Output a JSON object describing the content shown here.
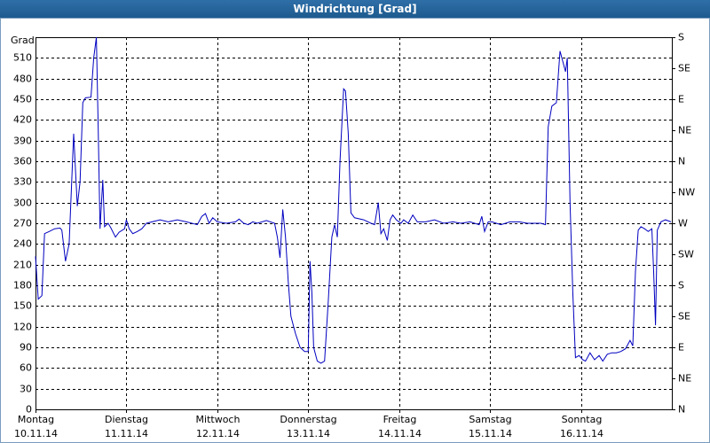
{
  "chart_data": {
    "type": "line",
    "title": "Windrichtung [Grad]",
    "y_label": "Grad",
    "x": [
      0,
      0.03,
      0.07,
      0.1,
      0.15,
      0.21,
      0.27,
      0.29,
      0.33,
      0.37,
      0.42,
      0.46,
      0.49,
      0.52,
      0.55,
      0.61,
      0.64,
      0.67,
      0.69,
      0.71,
      0.74,
      0.76,
      0.8,
      0.83,
      0.88,
      0.92,
      0.98,
      1.0,
      1.03,
      1.07,
      1.12,
      1.17,
      1.22,
      1.37,
      1.46,
      1.56,
      1.66,
      1.78,
      1.83,
      1.87,
      1.91,
      1.95,
      2.0,
      2.1,
      2.2,
      2.24,
      2.29,
      2.34,
      2.39,
      2.44,
      2.54,
      2.63,
      2.66,
      2.69,
      2.72,
      2.75,
      2.78,
      2.81,
      2.86,
      2.91,
      2.96,
      3.0,
      3.02,
      3.04,
      3.06,
      3.1,
      3.14,
      3.18,
      3.22,
      3.26,
      3.29,
      3.32,
      3.35,
      3.39,
      3.41,
      3.44,
      3.47,
      3.51,
      3.61,
      3.69,
      3.73,
      3.77,
      3.8,
      3.83,
      3.87,
      3.9,
      3.93,
      3.97,
      4.02,
      4.05,
      4.1,
      4.15,
      4.2,
      4.29,
      4.39,
      4.49,
      4.59,
      4.68,
      4.78,
      4.88,
      4.91,
      4.94,
      4.98,
      5.02,
      5.12,
      5.22,
      5.32,
      5.41,
      5.51,
      5.56,
      5.61,
      5.64,
      5.68,
      5.73,
      5.77,
      5.8,
      5.83,
      5.85,
      5.88,
      5.91,
      5.94,
      5.98,
      6.02,
      6.05,
      6.1,
      6.15,
      6.2,
      6.24,
      6.29,
      6.34,
      6.39,
      6.44,
      6.49,
      6.54,
      6.57,
      6.6,
      6.63,
      6.66,
      6.7,
      6.74,
      6.78,
      6.8,
      6.82,
      6.84,
      6.88,
      6.93,
      6.99
    ],
    "series": [
      {
        "color": "#0000c0",
        "values": [
          222,
          160,
          165,
          255,
          258,
          262,
          263,
          260,
          215,
          240,
          400,
          295,
          330,
          445,
          452,
          453,
          510,
          540,
          405,
          262,
          333,
          265,
          270,
          263,
          250,
          257,
          262,
          275,
          262,
          255,
          258,
          262,
          270,
          275,
          272,
          275,
          272,
          268,
          280,
          284,
          270,
          278,
          272,
          270,
          272,
          276,
          270,
          268,
          272,
          270,
          274,
          270,
          250,
          220,
          290,
          250,
          185,
          135,
          110,
          90,
          84,
          84,
          215,
          170,
          90,
          70,
          67,
          70,
          155,
          250,
          268,
          250,
          360,
          465,
          462,
          400,
          285,
          278,
          275,
          270,
          268,
          300,
          255,
          262,
          245,
          275,
          282,
          275,
          270,
          275,
          270,
          282,
          272,
          272,
          275,
          270,
          272,
          270,
          272,
          268,
          280,
          258,
          272,
          272,
          268,
          272,
          272,
          270,
          270,
          270,
          268,
          410,
          440,
          445,
          520,
          505,
          490,
          510,
          300,
          170,
          75,
          78,
          72,
          70,
          82,
          72,
          78,
          70,
          80,
          82,
          82,
          84,
          88,
          100,
          92,
          200,
          260,
          265,
          262,
          258,
          262,
          200,
          122,
          260,
          272,
          275,
          272
        ]
      }
    ],
    "xlim": [
      0,
      7
    ],
    "xticks": [
      {
        "value": 0,
        "label": [
          "Montag",
          "10.11.14"
        ]
      },
      {
        "value": 1,
        "label": [
          "Dienstag",
          "11.11.14"
        ]
      },
      {
        "value": 2,
        "label": [
          "Mittwoch",
          "12.11.14"
        ]
      },
      {
        "value": 3,
        "label": [
          "Donnerstag",
          "13.11.14"
        ]
      },
      {
        "value": 4,
        "label": [
          "Freitag",
          "14.11.14"
        ]
      },
      {
        "value": 5,
        "label": [
          "Samstag",
          "15.11.14"
        ]
      },
      {
        "value": 6,
        "label": [
          "Sonntag",
          "16.11.14"
        ]
      }
    ],
    "ylim": [
      0,
      540
    ],
    "yticks": [
      0,
      30,
      60,
      90,
      120,
      150,
      180,
      210,
      240,
      270,
      300,
      330,
      360,
      390,
      420,
      450,
      480,
      510
    ],
    "y2lim": [
      0,
      540
    ],
    "y2ticks": [
      {
        "value": 0,
        "label": "N"
      },
      {
        "value": 45,
        "label": "NE"
      },
      {
        "value": 90,
        "label": "E"
      },
      {
        "value": 135,
        "label": "SE"
      },
      {
        "value": 180,
        "label": "S"
      },
      {
        "value": 225,
        "label": "SW"
      },
      {
        "value": 270,
        "label": "W"
      },
      {
        "value": 315,
        "label": "NW"
      },
      {
        "value": 360,
        "label": "N"
      },
      {
        "value": 405,
        "label": "NE"
      },
      {
        "value": 450,
        "label": "E"
      },
      {
        "value": 495,
        "label": "SE"
      },
      {
        "value": 540,
        "label": "S"
      }
    ],
    "grid": true
  }
}
